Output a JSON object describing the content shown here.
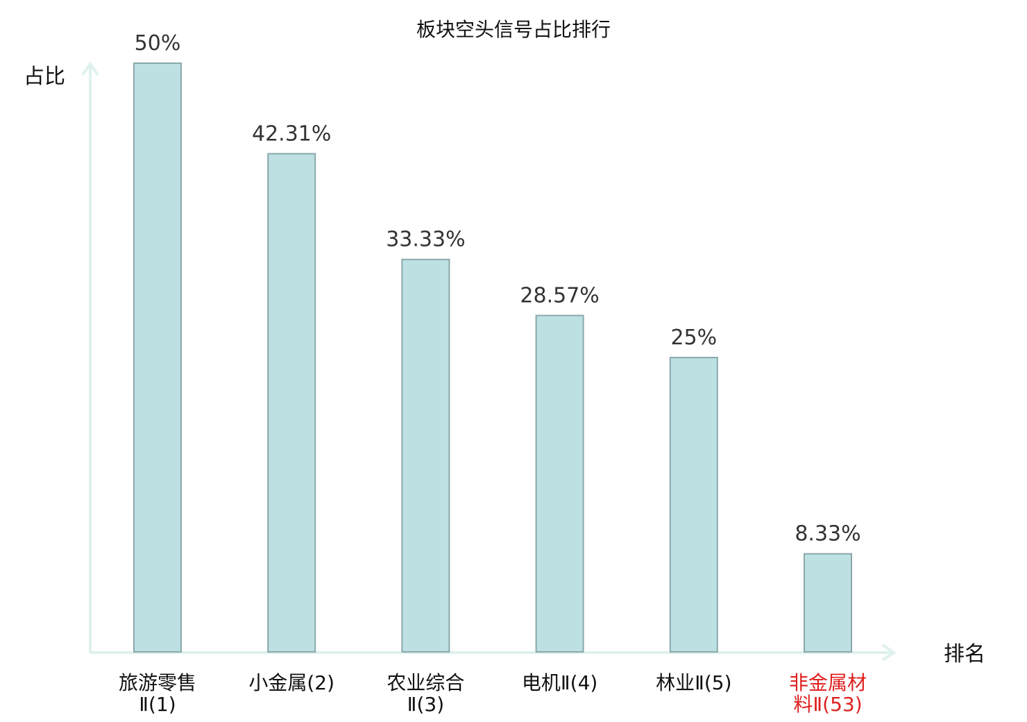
{
  "chart_data": {
    "type": "bar",
    "title": "板块空头信号占比排行",
    "ylabel": "占比",
    "xlabel": "排名",
    "ylim": [
      0,
      50
    ],
    "grid": false,
    "categories": [
      [
        "旅游零售",
        "Ⅱ(1)"
      ],
      [
        "小金属(2)"
      ],
      [
        "农业综合",
        "Ⅱ(3)"
      ],
      [
        "电机Ⅱ(4)"
      ],
      [
        "林业Ⅱ(5)"
      ],
      [
        "非金属材",
        "料Ⅱ(53)"
      ]
    ],
    "values": [
      50,
      42.31,
      33.33,
      28.57,
      25,
      8.33
    ],
    "value_labels": [
      "50%",
      "42.31%",
      "33.33%",
      "28.57%",
      "25%",
      "8.33%"
    ],
    "highlight_index": 5,
    "colors": {
      "bar_fill": "#bde0e3",
      "bar_stroke": "#8aa8ab",
      "axis": "#dff1ee",
      "highlight_text": "#e02020"
    }
  }
}
